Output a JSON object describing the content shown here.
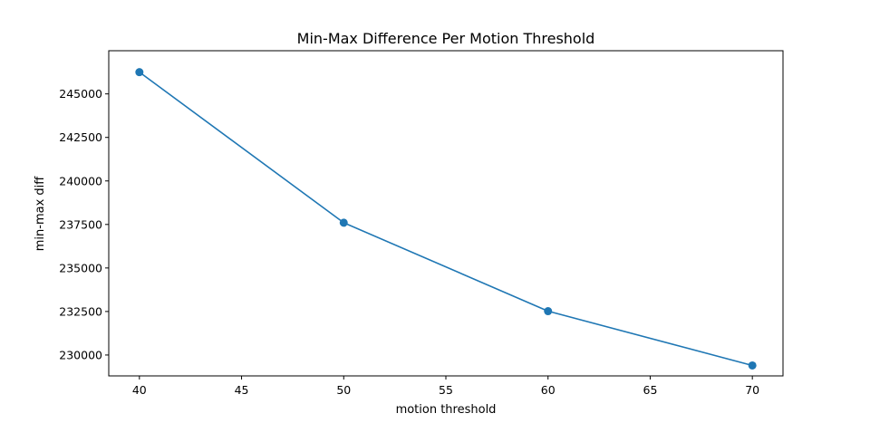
{
  "chart_data": {
    "type": "line",
    "title": "Min-Max Difference Per Motion Threshold",
    "xlabel": "motion threshold",
    "ylabel": "min-max diff",
    "x": [
      40,
      50,
      60,
      70
    ],
    "series": [
      {
        "values": [
          246250,
          237600,
          232520,
          229400
        ],
        "color": "#1f77b4",
        "marker": "circle"
      }
    ],
    "xlim": [
      38.5,
      71.5
    ],
    "ylim": [
      228800,
      247480
    ],
    "xticks": [
      40,
      45,
      50,
      55,
      60,
      65,
      70
    ],
    "yticks": [
      230000,
      232500,
      235000,
      237500,
      240000,
      242500,
      245000
    ],
    "grid": false,
    "legend": false
  }
}
